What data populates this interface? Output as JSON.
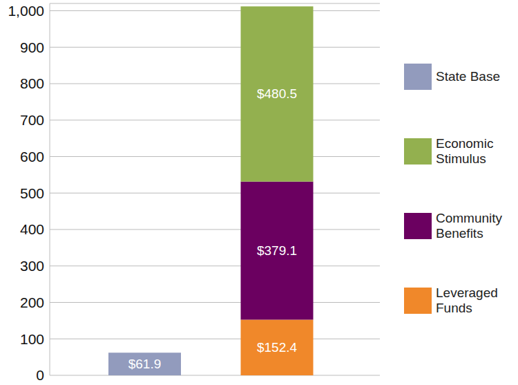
{
  "chart_data": {
    "type": "bar",
    "stacked": true,
    "data_labels": true,
    "grid": true,
    "legend": "right",
    "categories": [
      null,
      null
    ],
    "ylim": [
      0,
      1020
    ],
    "yticks": [
      0,
      100,
      200,
      300,
      400,
      500,
      600,
      700,
      800,
      900,
      {
        "value": 1000,
        "label": "1,000"
      }
    ],
    "series": [
      {
        "name": "State Base",
        "color": "#929bbd",
        "values": [
          61.9,
          null
        ],
        "value_labels": [
          "$61.9",
          null
        ]
      },
      {
        "name": "Economic Stimulus",
        "color": "#93b04f",
        "values": [
          null,
          480.5
        ],
        "value_labels": [
          null,
          "$480.5"
        ]
      },
      {
        "name": "Community Benefits",
        "color": "#6b0060",
        "values": [
          null,
          379.1
        ],
        "value_labels": [
          null,
          "$379.1"
        ]
      },
      {
        "name": "Leveraged Funds",
        "color": "#f0882a",
        "values": [
          null,
          152.4
        ],
        "value_labels": [
          null,
          "$152.4"
        ]
      }
    ]
  }
}
